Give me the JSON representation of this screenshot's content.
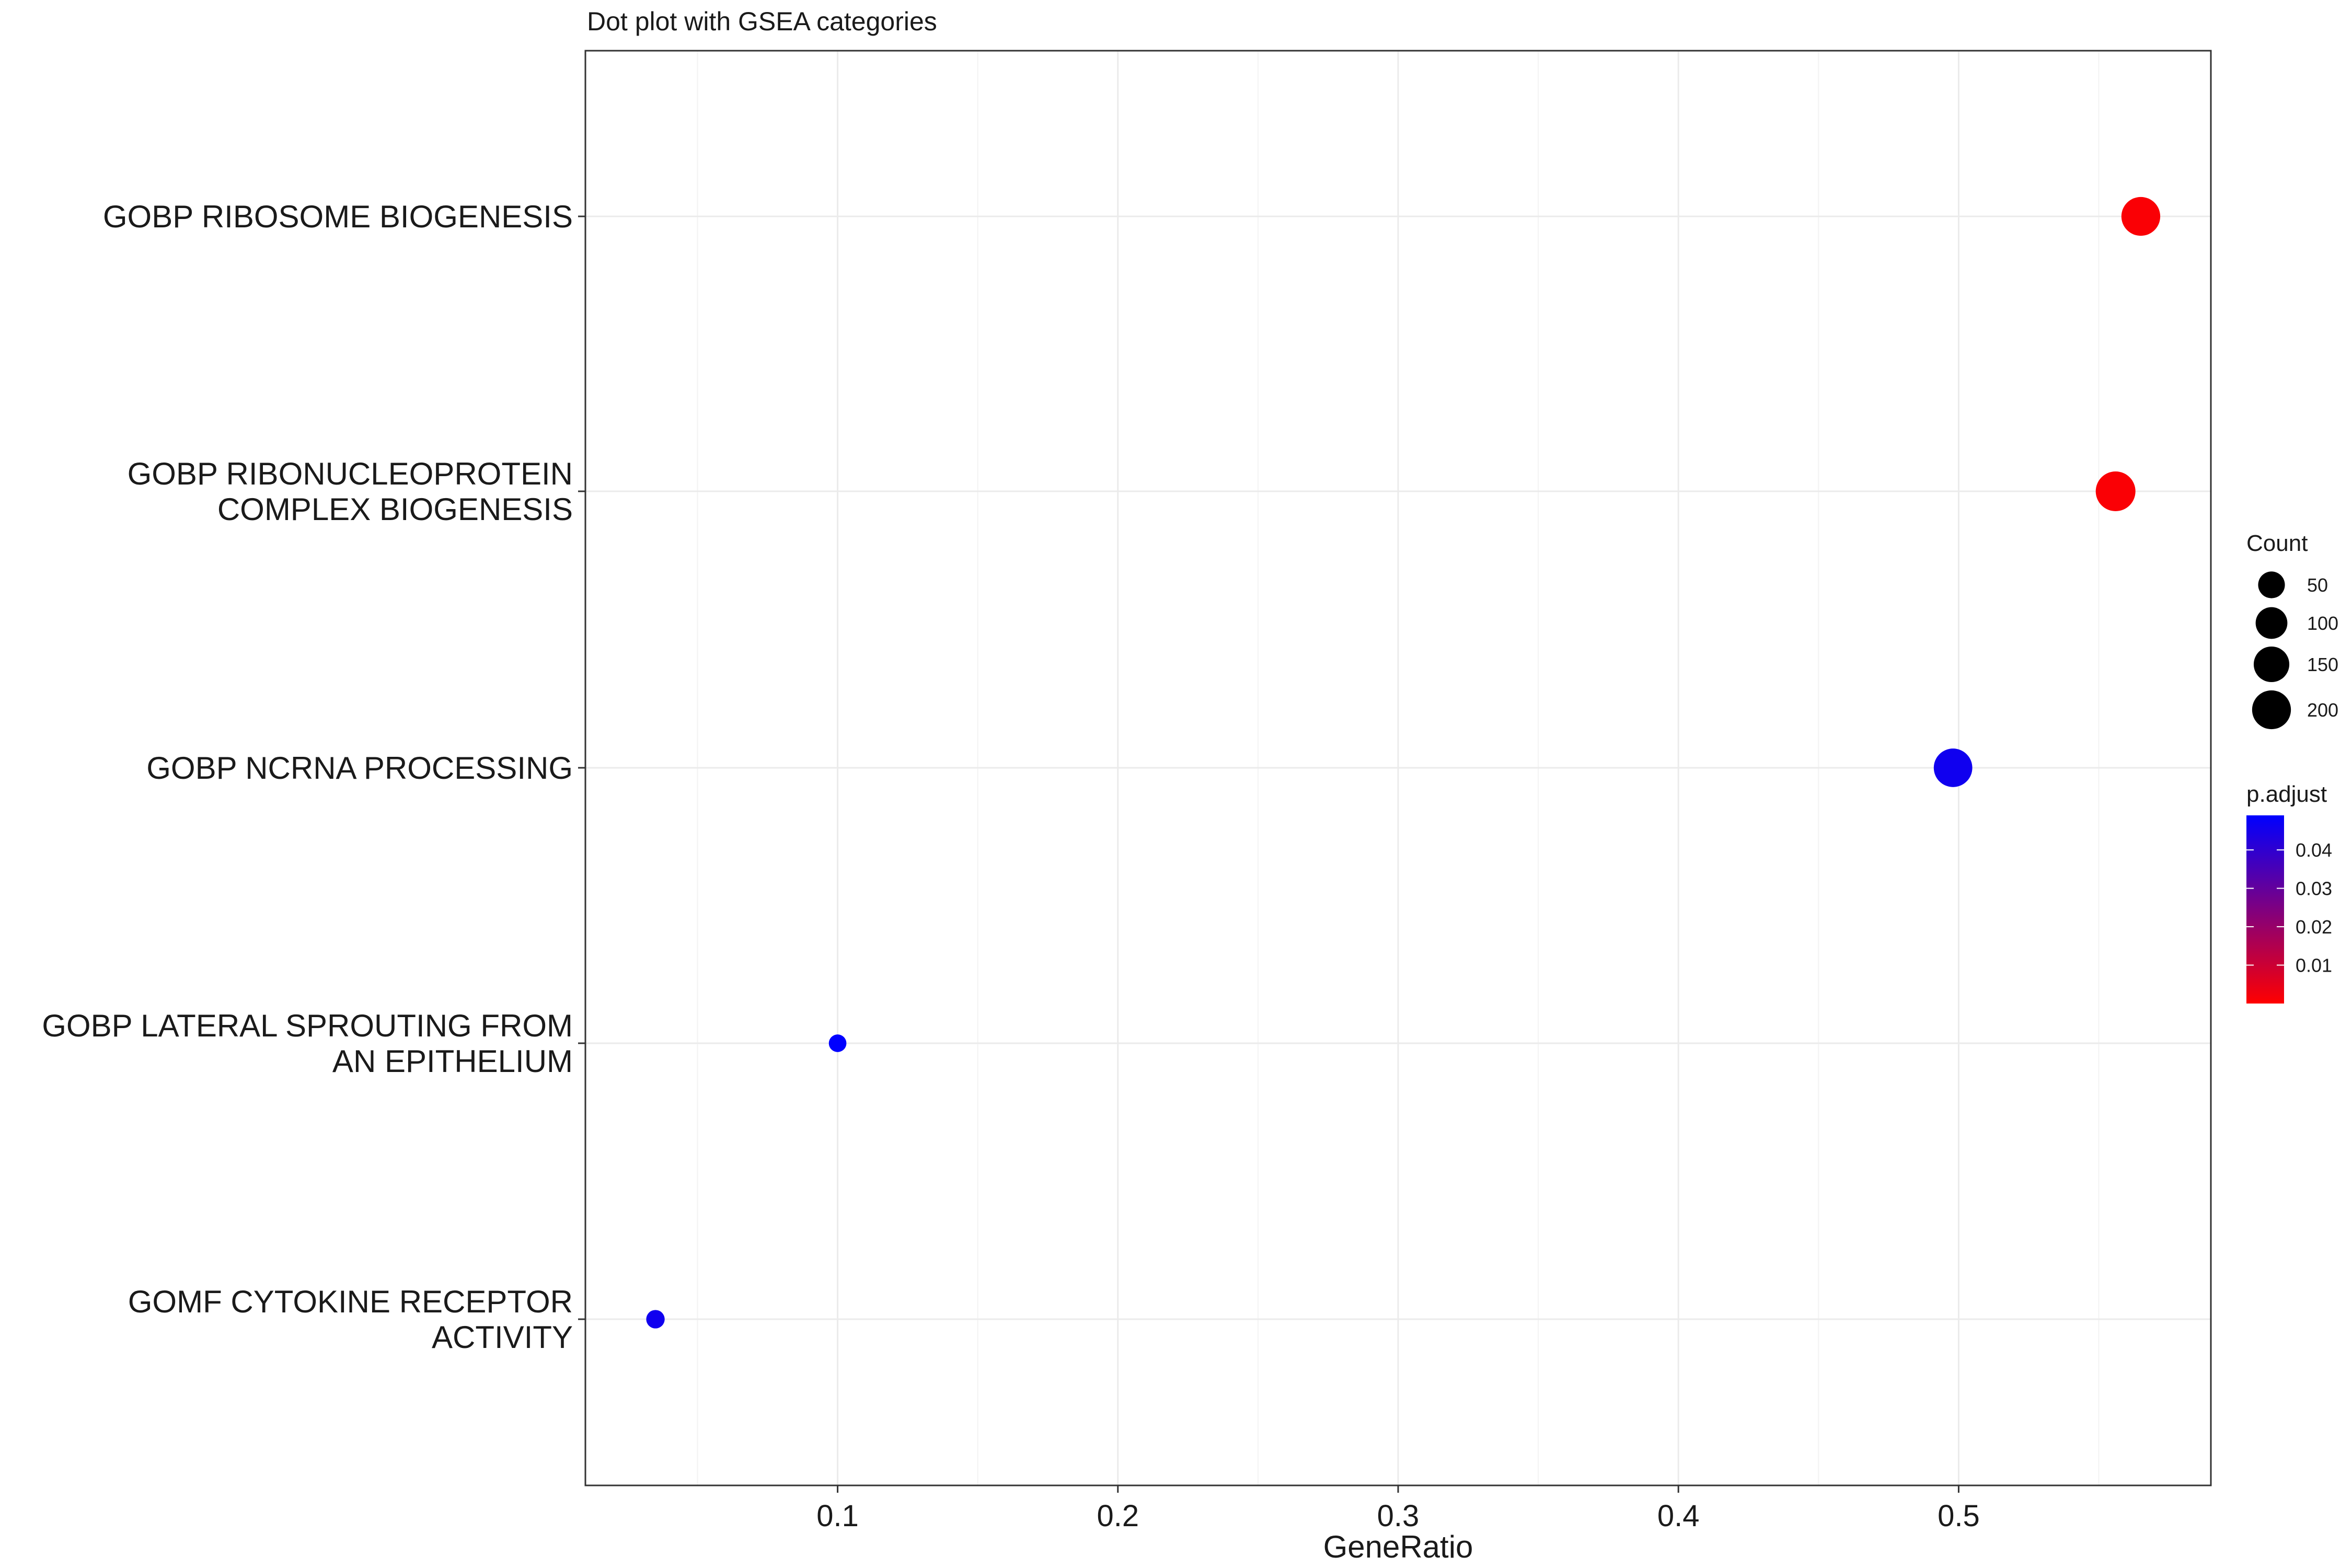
{
  "chart_data": {
    "type": "scatter",
    "title": "Dot plot with GSEA categories",
    "xlabel": "GeneRatio",
    "ylabel": "",
    "xlim": [
      0.01,
      0.59
    ],
    "xticks": [
      0.1,
      0.2,
      0.3,
      0.4,
      0.5
    ],
    "xtick_labels": [
      "0.1",
      "0.2",
      "0.3",
      "0.4",
      "0.5"
    ],
    "grid": true,
    "categories": [
      [
        "GOBP RIBOSOME BIOGENESIS"
      ],
      [
        "GOBP RIBONUCLEOPROTEIN",
        "COMPLEX BIOGENESIS"
      ],
      [
        "GOBP NCRNA PROCESSING"
      ],
      [
        "GOBP LATERAL SPROUTING FROM",
        "AN EPITHELIUM"
      ],
      [
        "GOMF CYTOKINE RECEPTOR",
        "ACTIVITY"
      ]
    ],
    "points": [
      {
        "x": 0.565,
        "count": 200,
        "p_adjust": 0.001
      },
      {
        "x": 0.556,
        "count": 215,
        "p_adjust": 0.001
      },
      {
        "x": 0.498,
        "count": 195,
        "p_adjust": 0.046
      },
      {
        "x": 0.1,
        "count": 3,
        "p_adjust": 0.049
      },
      {
        "x": 0.035,
        "count": 5,
        "p_adjust": 0.046
      }
    ],
    "legend": {
      "size_title": "Count",
      "size_breaks": [
        50,
        100,
        150,
        200
      ],
      "size_labels": [
        "50",
        "100",
        "150",
        "200"
      ],
      "color_title": "p.adjust",
      "color_low": "#ff0000",
      "color_high": "#0000ff",
      "color_limits": [
        0.0,
        0.049
      ],
      "color_breaks": [
        0.01,
        0.02,
        0.03,
        0.04
      ],
      "color_labels": [
        "0.01",
        "0.02",
        "0.03",
        "0.04"
      ],
      "position": "right"
    }
  }
}
